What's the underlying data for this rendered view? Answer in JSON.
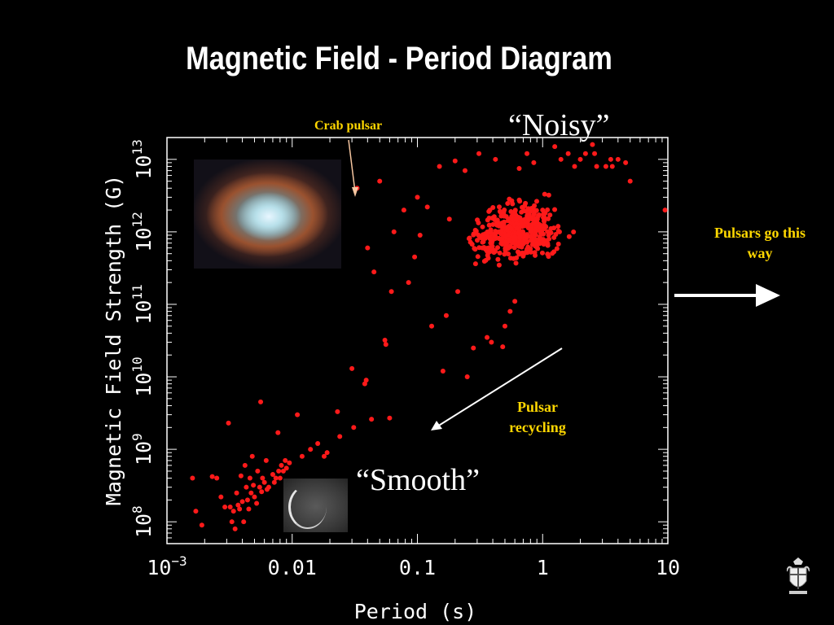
{
  "slide": {
    "title": "Magnetic Field - Period Diagram",
    "annotations": {
      "crab_pulsar": "Crab pulsar",
      "noisy": "“Noisy”",
      "smooth": "“Smooth”",
      "pulsar_recycling": "Pulsar recycling",
      "pulsars_direction": "Pulsars go this way"
    },
    "images": {
      "crab_nebula": "crab-nebula-image",
      "smooth_source": "smooth-pulsar-image",
      "crest": "university-crest-icon"
    },
    "colors": {
      "background": "#000000",
      "points": "#ff1a1a",
      "annotation_text": "#ffd700",
      "axes": "#ffffff"
    }
  },
  "chart_data": {
    "type": "scatter",
    "title": "",
    "xlabel": "Period (s)",
    "ylabel": "Magnetic Field Strength (G)",
    "x_scale": "log",
    "y_scale": "log",
    "xlim": [
      0.001,
      10
    ],
    "ylim": [
      50000000,
      20000000000000
    ],
    "x_ticks": [
      {
        "value": 0.001,
        "base": "10",
        "exp": "−3"
      },
      {
        "value": 0.01,
        "label": "0.01"
      },
      {
        "value": 0.1,
        "label": "0.1"
      },
      {
        "value": 1,
        "label": "1"
      },
      {
        "value": 10,
        "label": "10"
      }
    ],
    "y_ticks": [
      {
        "value": 100000000,
        "base": "10",
        "exp": "8"
      },
      {
        "value": 1000000000,
        "base": "10",
        "exp": "9"
      },
      {
        "value": 10000000000,
        "base": "10",
        "exp": "10"
      },
      {
        "value": 100000000000,
        "base": "10",
        "exp": "11"
      },
      {
        "value": 1000000000000,
        "base": "10",
        "exp": "12"
      },
      {
        "value": 10000000000000,
        "base": "10",
        "exp": "13"
      }
    ],
    "grid": false,
    "crab_pulsar": {
      "x": 0.033,
      "y": 4000000000000
    },
    "series": [
      {
        "color": "#ff1a1a",
        "points": [
          [
            0.033,
            4000000000000.0
          ],
          [
            0.0016,
            400000000.0
          ],
          [
            0.0017,
            140000000.0
          ],
          [
            0.0019,
            90000000.0
          ],
          [
            0.0023,
            420000000.0
          ],
          [
            0.0025,
            400000000.0
          ],
          [
            0.0027,
            220000000.0
          ],
          [
            0.0029,
            160000000.0
          ],
          [
            0.0031,
            2300000000.0
          ],
          [
            0.0032,
            160000000.0
          ],
          [
            0.0033,
            100000000.0
          ],
          [
            0.0034,
            140000000.0
          ],
          [
            0.0035,
            80000000.0
          ],
          [
            0.0036,
            250000000.0
          ],
          [
            0.0037,
            170000000.0
          ],
          [
            0.0038,
            150000000.0
          ],
          [
            0.0039,
            430000000.0
          ],
          [
            0.004,
            190000000.0
          ],
          [
            0.0041,
            100000000.0
          ],
          [
            0.0042,
            600000000.0
          ],
          [
            0.0043,
            300000000.0
          ],
          [
            0.0044,
            200000000.0
          ],
          [
            0.0045,
            150000000.0
          ],
          [
            0.0046,
            400000000.0
          ],
          [
            0.0047,
            250000000.0
          ],
          [
            0.0048,
            800000000.0
          ],
          [
            0.0049,
            320000000.0
          ],
          [
            0.005,
            220000000.0
          ],
          [
            0.0052,
            180000000.0
          ],
          [
            0.0053,
            500000000.0
          ],
          [
            0.0055,
            300000000.0
          ],
          [
            0.0056,
            4500000000.0
          ],
          [
            0.0057,
            260000000.0
          ],
          [
            0.0058,
            400000000.0
          ],
          [
            0.006,
            350000000.0
          ],
          [
            0.0062,
            700000000.0
          ],
          [
            0.0063,
            280000000.0
          ],
          [
            0.0065,
            300000000.0
          ],
          [
            0.007,
            450000000.0
          ],
          [
            0.0072,
            350000000.0
          ],
          [
            0.0074,
            400000000.0
          ],
          [
            0.0077,
            1700000000.0
          ],
          [
            0.0078,
            500000000.0
          ],
          [
            0.008,
            400000000.0
          ],
          [
            0.0082,
            600000000.0
          ],
          [
            0.0085,
            500000000.0
          ],
          [
            0.0088,
            700000000.0
          ],
          [
            0.009,
            550000000.0
          ],
          [
            0.0095,
            650000000.0
          ],
          [
            0.011,
            3000000000.0
          ],
          [
            0.012,
            800000000.0
          ],
          [
            0.014,
            1000000000.0
          ],
          [
            0.016,
            1200000000.0
          ],
          [
            0.018,
            800000000.0
          ],
          [
            0.019,
            900000000.0
          ],
          [
            0.023,
            3300000000.0
          ],
          [
            0.024,
            1500000000.0
          ],
          [
            0.03,
            13000000000.0
          ],
          [
            0.031,
            2000000000.0
          ],
          [
            0.038,
            8000000000.0
          ],
          [
            0.039,
            9000000000.0
          ],
          [
            0.04,
            600000000000.0
          ],
          [
            0.043,
            2600000000.0
          ],
          [
            0.045,
            280000000000.0
          ],
          [
            0.05,
            5000000000000.0
          ],
          [
            0.055,
            32000000000.0
          ],
          [
            0.056,
            28000000000.0
          ],
          [
            0.06,
            2700000000.0
          ],
          [
            0.062,
            150000000000.0
          ],
          [
            0.065,
            1000000000000.0
          ],
          [
            0.078,
            2000000000000.0
          ],
          [
            0.085,
            200000000000.0
          ],
          [
            0.095,
            450000000000.0
          ],
          [
            0.1,
            3000000000000.0
          ],
          [
            0.105,
            900000000000.0
          ],
          [
            0.12,
            2200000000000.0
          ],
          [
            0.13,
            50000000000.0
          ],
          [
            0.15,
            8000000000000.0
          ],
          [
            0.16,
            12000000000.0
          ],
          [
            0.17,
            70000000000.0
          ],
          [
            0.18,
            1500000000000.0
          ],
          [
            0.2,
            9500000000000.0
          ],
          [
            0.21,
            150000000000.0
          ],
          [
            0.24,
            7000000000000.0
          ],
          [
            0.25,
            10000000000.0
          ],
          [
            0.28,
            25000000000.0
          ],
          [
            0.31,
            12000000000000.0
          ],
          [
            0.33,
            600000000000.0
          ],
          [
            0.36,
            35000000000.0
          ],
          [
            0.39,
            30000000000.0
          ],
          [
            0.42,
            10000000000000.0
          ],
          [
            0.48,
            26000000000.0
          ],
          [
            0.5,
            50000000000.0
          ],
          [
            0.55,
            80000000000.0
          ],
          [
            0.6,
            110000000000.0
          ],
          [
            0.65,
            7500000000000.0
          ],
          [
            0.75,
            12000000000000.0
          ],
          [
            0.85,
            9000000000000.0
          ],
          [
            1.0,
            2000000000000.0
          ],
          [
            1.25,
            15000000000000.0
          ],
          [
            1.4,
            10000000000000.0
          ],
          [
            1.6,
            12000000000000.0
          ],
          [
            1.8,
            8000000000000.0
          ],
          [
            2.0,
            10000000000000.0
          ],
          [
            2.2,
            12000000000000.0
          ],
          [
            2.5,
            16000000000000.0
          ],
          [
            2.6,
            12000000000000.0
          ],
          [
            2.7,
            8000000000000.0
          ],
          [
            3.2,
            8000000000000.0
          ],
          [
            3.5,
            10000000000000.0
          ],
          [
            3.6,
            8000000000000.0
          ],
          [
            4.0,
            10000000000000.0
          ],
          [
            4.6,
            9000000000000.0
          ],
          [
            5.0,
            5000000000000.0
          ],
          [
            9.5,
            2000000000000.0
          ]
        ],
        "cluster": {
          "center_x": 0.6,
          "center_y": 1000000000000.0,
          "spread_log_x": 0.3,
          "spread_log_y": 0.3,
          "count": 450,
          "color": "#ff1a1a"
        }
      }
    ]
  }
}
